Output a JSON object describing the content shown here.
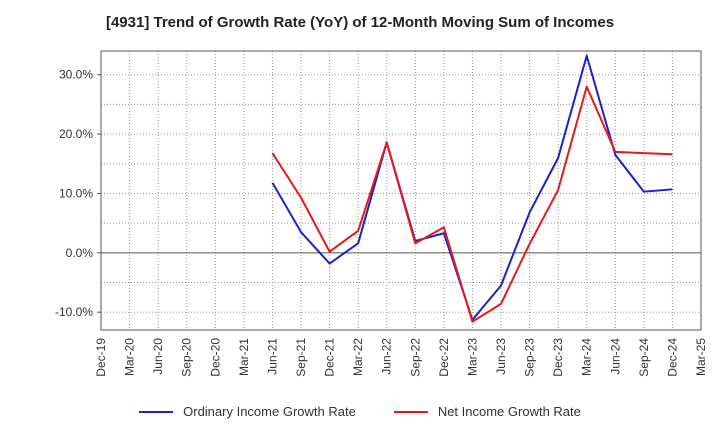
{
  "chart_data": {
    "type": "line",
    "title": "[4931]  Trend of Growth Rate (YoY) of 12-Month Moving Sum of Incomes",
    "xlabel": "",
    "ylabel": "",
    "categories": [
      "Dec-19",
      "Mar-20",
      "Jun-20",
      "Sep-20",
      "Dec-20",
      "Mar-21",
      "Jun-21",
      "Sep-21",
      "Dec-21",
      "Mar-22",
      "Jun-22",
      "Sep-22",
      "Dec-22",
      "Mar-23",
      "Jun-23",
      "Sep-23",
      "Dec-23",
      "Mar-24",
      "Jun-24",
      "Sep-24",
      "Dec-24",
      "Mar-25"
    ],
    "yticks": [
      "30.0%",
      "20.0%",
      "10.0%",
      "0.0%",
      "-10.0%"
    ],
    "ytick_values": [
      30,
      20,
      10,
      0,
      -10
    ],
    "ylim": [
      -13,
      34
    ],
    "grid": true,
    "legend_position": "bottom",
    "series": [
      {
        "name": "Ordinary Income Growth Rate",
        "color": "#1f1fcc",
        "values": [
          null,
          null,
          null,
          null,
          null,
          null,
          11.8,
          3.5,
          -1.8,
          1.6,
          18.6,
          2.0,
          3.3,
          -11.3,
          -5.5,
          6.8,
          16.0,
          33.2,
          16.5,
          10.3,
          10.7,
          null
        ]
      },
      {
        "name": "Net Income Growth Rate",
        "color": "#e31a1c",
        "values": [
          null,
          null,
          null,
          null,
          null,
          null,
          16.8,
          9.3,
          0.2,
          3.7,
          18.6,
          1.6,
          4.3,
          -11.6,
          -8.6,
          1.5,
          10.6,
          28.0,
          17.0,
          16.8,
          16.6,
          null
        ]
      }
    ]
  }
}
